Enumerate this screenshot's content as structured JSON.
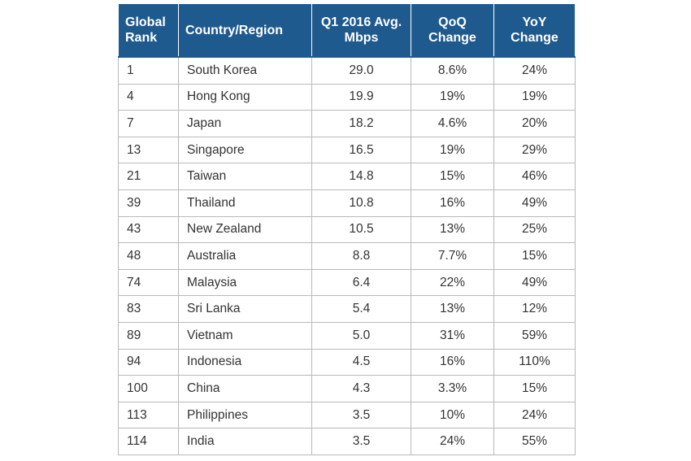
{
  "table": {
    "headers": [
      "Global Rank",
      "Country/Region",
      "Q1 2016 Avg. Mbps",
      "QoQ Change",
      "YoY Change"
    ],
    "rows": [
      [
        "1",
        "South Korea",
        "29.0",
        "8.6%",
        "24%"
      ],
      [
        "4",
        "Hong Kong",
        "19.9",
        "19%",
        "19%"
      ],
      [
        "7",
        "Japan",
        "18.2",
        "4.6%",
        "20%"
      ],
      [
        "13",
        "Singapore",
        "16.5",
        "19%",
        "29%"
      ],
      [
        "21",
        "Taiwan",
        "14.8",
        "15%",
        "46%"
      ],
      [
        "39",
        "Thailand",
        "10.8",
        "16%",
        "49%"
      ],
      [
        "43",
        "New Zealand",
        "10.5",
        "13%",
        "25%"
      ],
      [
        "48",
        "Australia",
        "8.8",
        "7.7%",
        "15%"
      ],
      [
        "74",
        "Malaysia",
        "6.4",
        "22%",
        "49%"
      ],
      [
        "83",
        "Sri Lanka",
        "5.4",
        "13%",
        "12%"
      ],
      [
        "89",
        "Vietnam",
        "5.0",
        "31%",
        "59%"
      ],
      [
        "94",
        "Indonesia",
        "4.5",
        "16%",
        "110%"
      ],
      [
        "100",
        "China",
        "4.3",
        "3.3%",
        "15%"
      ],
      [
        "113",
        "Philippines",
        "3.5",
        "10%",
        "24%"
      ],
      [
        "114",
        "India",
        "3.5",
        "24%",
        "55%"
      ]
    ]
  },
  "chart_data": {
    "type": "table",
    "columns": [
      "Global Rank",
      "Country/Region",
      "Q1 2016 Avg. Mbps",
      "QoQ Change",
      "YoY Change"
    ],
    "rows": [
      [
        1,
        "South Korea",
        29.0,
        "8.6%",
        "24%"
      ],
      [
        4,
        "Hong Kong",
        19.9,
        "19%",
        "19%"
      ],
      [
        7,
        "Japan",
        18.2,
        "4.6%",
        "20%"
      ],
      [
        13,
        "Singapore",
        16.5,
        "19%",
        "29%"
      ],
      [
        21,
        "Taiwan",
        14.8,
        "15%",
        "46%"
      ],
      [
        39,
        "Thailand",
        10.8,
        "16%",
        "49%"
      ],
      [
        43,
        "New Zealand",
        10.5,
        "13%",
        "25%"
      ],
      [
        48,
        "Australia",
        8.8,
        "7.7%",
        "15%"
      ],
      [
        74,
        "Malaysia",
        6.4,
        "22%",
        "49%"
      ],
      [
        83,
        "Sri Lanka",
        5.4,
        "13%",
        "12%"
      ],
      [
        89,
        "Vietnam",
        5.0,
        "31%",
        "59%"
      ],
      [
        94,
        "Indonesia",
        4.5,
        "16%",
        "110%"
      ],
      [
        100,
        "China",
        4.3,
        "3.3%",
        "15%"
      ],
      [
        113,
        "Philippines",
        3.5,
        "10%",
        "24%"
      ],
      [
        114,
        "India",
        3.5,
        "24%",
        "55%"
      ]
    ]
  },
  "colors": {
    "header_background": "#1e5a8e",
    "header_text": "#ffffff",
    "cell_text": "#333333",
    "cell_border": "#b9b9b9"
  }
}
